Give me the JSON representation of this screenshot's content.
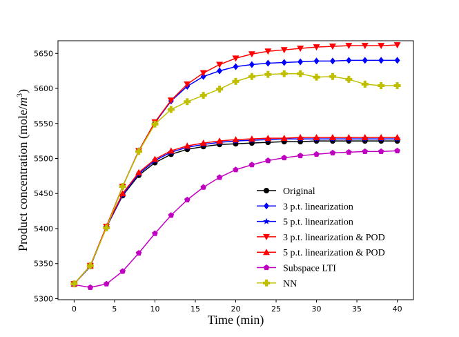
{
  "chart_data": {
    "type": "line",
    "title": "",
    "xlabel": "Time (min)",
    "ylabel_prefix": "Product concentration (mole/",
    "ylabel_unit_base": "m",
    "ylabel_unit_exp": "3",
    "ylabel_suffix": ")",
    "xlim": [
      -2,
      42
    ],
    "ylim": [
      5298.5,
      5668
    ],
    "xticks": [
      0,
      5,
      10,
      15,
      20,
      25,
      30,
      35,
      40
    ],
    "yticks": [
      5300,
      5350,
      5400,
      5450,
      5500,
      5550,
      5600,
      5650
    ],
    "grid": false,
    "legend_position": "lower-right",
    "x": [
      0,
      2,
      4,
      6,
      8,
      10,
      12,
      14,
      16,
      18,
      20,
      22,
      24,
      26,
      28,
      30,
      32,
      34,
      36,
      38,
      40
    ],
    "series": [
      {
        "name": "Original",
        "color": "#000000",
        "marker": "circle",
        "values": [
          5321,
          5346,
          5402,
          5447,
          5476,
          5494,
          5506,
          5513,
          5517,
          5520,
          5521,
          5522,
          5523,
          5524,
          5524,
          5525,
          5525,
          5525,
          5525,
          5525,
          5525
        ]
      },
      {
        "name": "3 p.t. linearization",
        "color": "#0000ff",
        "marker": "diamond",
        "values": [
          5321,
          5347,
          5402,
          5460,
          5511,
          5551,
          5582,
          5603,
          5617,
          5625,
          5631,
          5634,
          5636,
          5637,
          5638,
          5639,
          5639,
          5640,
          5640,
          5640,
          5640
        ]
      },
      {
        "name": "5 p.t. linearization",
        "color": "#0000ff",
        "marker": "star",
        "values": [
          5321,
          5346,
          5402,
          5448,
          5478,
          5497,
          5509,
          5516,
          5520,
          5523,
          5525,
          5526,
          5527,
          5528,
          5528,
          5528,
          5528,
          5528,
          5528,
          5528,
          5528
        ]
      },
      {
        "name": "3 p.t. linearization & POD",
        "color": "#ff0000",
        "marker": "triangle-down",
        "values": [
          5321,
          5347,
          5403,
          5460,
          5511,
          5552,
          5583,
          5606,
          5622,
          5634,
          5643,
          5649,
          5653,
          5655,
          5657,
          5659,
          5660,
          5661,
          5661,
          5661,
          5662
        ]
      },
      {
        "name": "5 p.t. linearization & POD",
        "color": "#ff0000",
        "marker": "triangle-up",
        "values": [
          5321,
          5347,
          5403,
          5450,
          5480,
          5499,
          5511,
          5518,
          5522,
          5525,
          5527,
          5528,
          5529,
          5529,
          5530,
          5530,
          5530,
          5530,
          5530,
          5530,
          5530
        ]
      },
      {
        "name": "Subspace LTI",
        "color": "#c000c0",
        "marker": "pentagon",
        "values": [
          5320,
          5316,
          5321,
          5339,
          5365,
          5393,
          5419,
          5441,
          5459,
          5473,
          5484,
          5491,
          5497,
          5501,
          5504,
          5506,
          5508,
          5509,
          5510,
          5510,
          5511
        ]
      },
      {
        "name": "NN",
        "color": "#bfbf00",
        "marker": "plus",
        "values": [
          5321,
          5347,
          5401,
          5460,
          5510,
          5549,
          5570,
          5581,
          5590,
          5599,
          5610,
          5617,
          5620,
          5621,
          5621,
          5616,
          5617,
          5613,
          5606,
          5604,
          5604
        ]
      }
    ]
  }
}
